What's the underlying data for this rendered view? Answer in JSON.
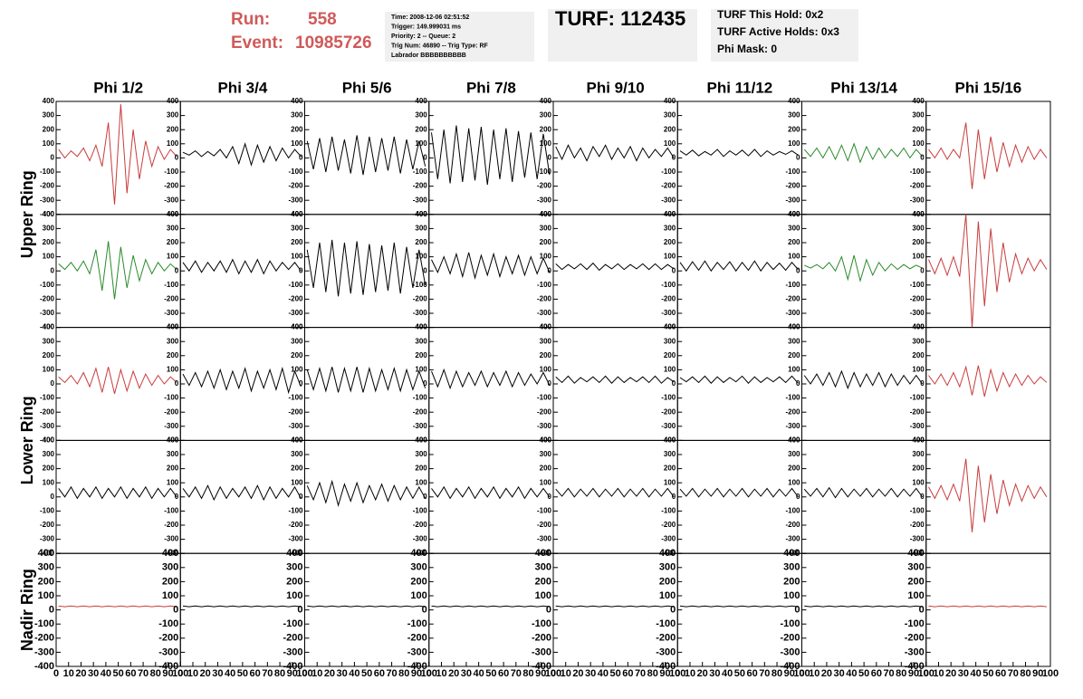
{
  "header": {
    "run_label": "Run:",
    "run": "558",
    "event_label": "Event:",
    "event": "10985726",
    "info": [
      "Time: 2008-12-06 02:51:52",
      "Trigger: 149.999031 ms",
      "Priority: 2 -- Queue: 2",
      "Trig Num: 46890 -- Trig Type: RF",
      "Labrador BBBBBBBBBB"
    ],
    "turf": "TURF: 112435",
    "holds": [
      "TURF This Hold: 0x2",
      "TURF Active Holds: 0x3",
      "Phi Mask: 0"
    ]
  },
  "chart_data": {
    "type": "line",
    "columns": [
      "Phi 1/2",
      "Phi 3/4",
      "Phi 5/6",
      "Phi 7/8",
      "Phi 9/10",
      "Phi 11/12",
      "Phi 13/14",
      "Phi 15/16"
    ],
    "ring_labels": [
      "Upper Ring",
      "Lower Ring",
      "Nadir Ring"
    ],
    "xlim": [
      0,
      100
    ],
    "xticks": [
      0,
      10,
      20,
      30,
      40,
      50,
      60,
      70,
      80,
      90,
      100
    ],
    "ylim": [
      -400,
      400
    ],
    "yticks": [
      -400,
      -300,
      -200,
      -100,
      0,
      100,
      200,
      300,
      400
    ],
    "x": [
      2,
      7,
      12,
      17,
      22,
      27,
      32,
      37,
      42,
      47,
      52,
      57,
      62,
      67,
      72,
      77,
      82,
      87,
      92,
      97
    ],
    "rows": [
      [
        {
          "color": "#c83c3c",
          "values": [
            60,
            0,
            50,
            10,
            70,
            -20,
            90,
            -60,
            250,
            -330,
            380,
            -250,
            200,
            -150,
            120,
            -60,
            80,
            -10,
            60,
            10
          ]
        },
        {
          "color": "#000000",
          "values": [
            40,
            20,
            50,
            10,
            45,
            15,
            60,
            0,
            80,
            -40,
            100,
            -50,
            90,
            -30,
            80,
            -20,
            70,
            0,
            60,
            10
          ]
        },
        {
          "color": "#000000",
          "values": [
            120,
            -80,
            140,
            -100,
            150,
            -90,
            130,
            -110,
            160,
            -120,
            150,
            -100,
            140,
            -90,
            150,
            -110,
            130,
            -80,
            120,
            -60
          ]
        },
        {
          "color": "#000000",
          "values": [
            180,
            -150,
            200,
            -180,
            230,
            -170,
            210,
            -160,
            220,
            -190,
            200,
            -150,
            210,
            -170,
            190,
            -140,
            180,
            -150,
            170,
            -120
          ]
        },
        {
          "color": "#000000",
          "values": [
            80,
            -10,
            90,
            0,
            70,
            -20,
            80,
            10,
            90,
            -10,
            70,
            0,
            80,
            -20,
            70,
            0,
            60,
            10,
            70,
            0
          ]
        },
        {
          "color": "#000000",
          "values": [
            50,
            20,
            55,
            15,
            45,
            20,
            60,
            10,
            50,
            20,
            55,
            15,
            60,
            10,
            50,
            20,
            45,
            25,
            50,
            20
          ]
        },
        {
          "color": "#2a8a2a",
          "values": [
            60,
            10,
            70,
            0,
            80,
            -10,
            90,
            -20,
            100,
            -30,
            80,
            -10,
            70,
            0,
            60,
            10,
            70,
            0,
            60,
            10
          ]
        },
        {
          "color": "#c83c3c",
          "values": [
            60,
            0,
            70,
            -10,
            60,
            0,
            250,
            -220,
            200,
            -150,
            150,
            -100,
            110,
            -60,
            90,
            -30,
            80,
            -10,
            60,
            0
          ]
        }
      ],
      [
        {
          "color": "#2a8a2a",
          "values": [
            50,
            10,
            60,
            0,
            70,
            -20,
            150,
            -140,
            210,
            -200,
            170,
            -120,
            110,
            -70,
            80,
            -20,
            60,
            0,
            50,
            10
          ]
        },
        {
          "color": "#000000",
          "values": [
            60,
            0,
            70,
            -10,
            60,
            0,
            70,
            -10,
            80,
            -20,
            70,
            -10,
            80,
            -20,
            70,
            0,
            60,
            10,
            60,
            0
          ]
        },
        {
          "color": "#000000",
          "values": [
            150,
            -120,
            200,
            -150,
            220,
            -180,
            200,
            -160,
            210,
            -170,
            190,
            -150,
            180,
            -140,
            200,
            -160,
            170,
            -120,
            150,
            -100
          ]
        },
        {
          "color": "#000000",
          "values": [
            80,
            -10,
            100,
            -20,
            120,
            -40,
            130,
            -50,
            110,
            -30,
            120,
            -40,
            100,
            -20,
            110,
            -30,
            100,
            -20,
            90,
            -10
          ]
        },
        {
          "color": "#000000",
          "values": [
            50,
            10,
            45,
            15,
            50,
            10,
            55,
            5,
            45,
            15,
            50,
            10,
            45,
            15,
            50,
            10,
            50,
            10,
            45,
            15
          ]
        },
        {
          "color": "#000000",
          "values": [
            60,
            0,
            65,
            5,
            70,
            0,
            60,
            10,
            65,
            0,
            60,
            5,
            70,
            0,
            60,
            10,
            55,
            5,
            60,
            10
          ]
        },
        {
          "color": "#2a8a2a",
          "values": [
            40,
            20,
            45,
            15,
            60,
            0,
            100,
            -60,
            110,
            -70,
            80,
            -30,
            60,
            0,
            50,
            10,
            45,
            15,
            40,
            20
          ]
        },
        {
          "color": "#c83c3c",
          "values": [
            80,
            -20,
            90,
            -30,
            100,
            -40,
            400,
            -400,
            350,
            -250,
            300,
            -150,
            200,
            -80,
            120,
            -20,
            90,
            0,
            80,
            10
          ]
        }
      ],
      [
        {
          "color": "#c83c3c",
          "values": [
            50,
            10,
            60,
            0,
            80,
            -20,
            110,
            -60,
            120,
            -70,
            100,
            -50,
            90,
            -30,
            70,
            -10,
            60,
            0,
            50,
            10
          ]
        },
        {
          "color": "#000000",
          "values": [
            70,
            -10,
            80,
            -20,
            90,
            -30,
            100,
            -40,
            90,
            -30,
            110,
            -50,
            90,
            -30,
            100,
            -40,
            110,
            -60,
            90,
            -20
          ]
        },
        {
          "color": "#000000",
          "values": [
            100,
            -40,
            110,
            -50,
            120,
            -60,
            110,
            -50,
            120,
            -60,
            110,
            -50,
            100,
            -40,
            110,
            -50,
            100,
            -40,
            90,
            -30
          ]
        },
        {
          "color": "#000000",
          "values": [
            90,
            -20,
            100,
            -30,
            90,
            -20,
            80,
            -10,
            90,
            -20,
            80,
            -10,
            90,
            -20,
            80,
            -10,
            70,
            0,
            80,
            -10
          ]
        },
        {
          "color": "#000000",
          "values": [
            50,
            10,
            55,
            5,
            45,
            15,
            50,
            10,
            55,
            5,
            50,
            10,
            45,
            15,
            50,
            10,
            55,
            5,
            45,
            15
          ]
        },
        {
          "color": "#000000",
          "values": [
            45,
            15,
            50,
            10,
            55,
            5,
            50,
            10,
            45,
            15,
            55,
            5,
            50,
            10,
            45,
            15,
            50,
            10,
            55,
            5
          ]
        },
        {
          "color": "#000000",
          "values": [
            60,
            0,
            70,
            -10,
            80,
            -20,
            90,
            -30,
            80,
            -20,
            70,
            -10,
            80,
            -20,
            70,
            -10,
            60,
            0,
            60,
            0
          ]
        },
        {
          "color": "#c83c3c",
          "values": [
            60,
            0,
            70,
            -10,
            80,
            -20,
            120,
            -80,
            130,
            -90,
            100,
            -50,
            80,
            -20,
            70,
            -10,
            60,
            0,
            50,
            10
          ]
        }
      ],
      [
        {
          "color": "#000000",
          "values": [
            60,
            0,
            70,
            -10,
            60,
            0,
            70,
            -10,
            60,
            0,
            70,
            -10,
            60,
            0,
            70,
            -10,
            60,
            0,
            60,
            0
          ]
        },
        {
          "color": "#000000",
          "values": [
            60,
            0,
            70,
            -10,
            80,
            -20,
            70,
            -10,
            60,
            0,
            70,
            -10,
            80,
            -20,
            70,
            -10,
            60,
            0,
            70,
            -10
          ]
        },
        {
          "color": "#000000",
          "values": [
            80,
            -20,
            100,
            -40,
            110,
            -60,
            90,
            -30,
            100,
            -40,
            80,
            -20,
            90,
            -30,
            80,
            -20,
            70,
            -10,
            70,
            -10
          ]
        },
        {
          "color": "#000000",
          "values": [
            60,
            0,
            70,
            -10,
            60,
            0,
            70,
            -10,
            60,
            0,
            70,
            -10,
            60,
            0,
            70,
            -10,
            60,
            0,
            60,
            0
          ]
        },
        {
          "color": "#000000",
          "values": [
            55,
            5,
            60,
            0,
            55,
            5,
            60,
            0,
            55,
            5,
            60,
            0,
            55,
            5,
            60,
            0,
            55,
            5,
            60,
            0
          ]
        },
        {
          "color": "#000000",
          "values": [
            55,
            5,
            60,
            0,
            55,
            5,
            60,
            0,
            55,
            5,
            60,
            0,
            55,
            5,
            60,
            0,
            55,
            5,
            60,
            0
          ]
        },
        {
          "color": "#000000",
          "values": [
            55,
            5,
            60,
            0,
            65,
            -5,
            60,
            0,
            55,
            5,
            60,
            0,
            55,
            5,
            60,
            0,
            55,
            5,
            60,
            0
          ]
        },
        {
          "color": "#c83c3c",
          "values": [
            70,
            -10,
            80,
            -20,
            90,
            -30,
            270,
            -250,
            220,
            -180,
            160,
            -120,
            120,
            -60,
            90,
            -30,
            80,
            -10,
            70,
            0
          ]
        }
      ],
      [
        {
          "color": "#c83c3c",
          "values": [
            28,
            22,
            28,
            22,
            28,
            22,
            28,
            22,
            28,
            22,
            28,
            22,
            28,
            22,
            28,
            22,
            28,
            22,
            28,
            22
          ]
        },
        {
          "color": "#000000",
          "values": [
            28,
            22,
            28,
            22,
            28,
            22,
            28,
            22,
            28,
            22,
            28,
            22,
            28,
            22,
            28,
            22,
            28,
            22,
            28,
            22
          ]
        },
        {
          "color": "#000000",
          "values": [
            28,
            22,
            28,
            22,
            28,
            22,
            28,
            22,
            28,
            22,
            28,
            22,
            28,
            22,
            28,
            22,
            28,
            22,
            28,
            22
          ]
        },
        {
          "color": "#000000",
          "values": [
            28,
            22,
            28,
            22,
            28,
            22,
            28,
            22,
            28,
            22,
            28,
            22,
            28,
            22,
            28,
            22,
            28,
            22,
            28,
            22
          ]
        },
        {
          "color": "#000000",
          "values": [
            28,
            22,
            28,
            22,
            28,
            22,
            28,
            22,
            28,
            22,
            28,
            22,
            28,
            22,
            28,
            22,
            28,
            22,
            28,
            22
          ]
        },
        {
          "color": "#000000",
          "values": [
            28,
            22,
            28,
            22,
            28,
            22,
            28,
            22,
            28,
            22,
            28,
            22,
            28,
            22,
            28,
            22,
            28,
            22,
            28,
            22
          ]
        },
        {
          "color": "#000000",
          "values": [
            28,
            22,
            28,
            22,
            28,
            22,
            28,
            22,
            28,
            22,
            28,
            22,
            28,
            22,
            28,
            22,
            28,
            22,
            28,
            22
          ]
        },
        {
          "color": "#c83c3c",
          "values": [
            28,
            22,
            28,
            22,
            28,
            22,
            28,
            22,
            28,
            22,
            28,
            22,
            28,
            22,
            28,
            22,
            28,
            22,
            28,
            22
          ]
        }
      ]
    ]
  }
}
